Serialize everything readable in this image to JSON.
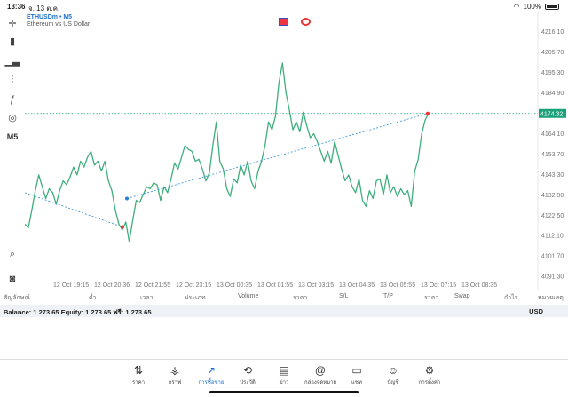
{
  "status": {
    "time": "13:36",
    "date": "จ. 13 ต.ค.",
    "battery": "100%"
  },
  "toolbar": {
    "timeframe": "M5"
  },
  "chart": {
    "symbol": "ETHUSDm • M5",
    "description": "Ethereum vs US Dollar",
    "current_price_label": "4174.32"
  },
  "chart_data": {
    "type": "line",
    "series": [
      {
        "values": [
          4118,
          4116,
          4125,
          4135,
          4143,
          4137,
          4131,
          4136,
          4134,
          4128,
          4135,
          4140,
          4138,
          4142,
          4147,
          4143,
          4150,
          4147,
          4152,
          4155,
          4148,
          4150,
          4145,
          4150,
          4140,
          4135,
          4125,
          4118,
          4115,
          4119,
          4109,
          4120,
          4130,
          4129,
          4133,
          4137,
          4136,
          4139,
          4138,
          4130,
          4137,
          4134,
          4141,
          4149,
          4146,
          4152,
          4158,
          4156,
          4155,
          4150,
          4151,
          4146,
          4140,
          4144,
          4158,
          4170,
          4150,
          4146,
          4136,
          4132,
          4141,
          4139,
          4148,
          4143,
          4150,
          4140,
          4136,
          4145,
          4150,
          4158,
          4170,
          4166,
          4173,
          4190,
          4200,
          4185,
          4176,
          4166,
          4170,
          4165,
          4175,
          4168,
          4162,
          4164,
          4160,
          4155,
          4150,
          4155,
          4149,
          4160,
          4153,
          4146,
          4140,
          4143,
          4137,
          4134,
          4141,
          4130,
          4127,
          4135,
          4131,
          4140,
          4141,
          4133,
          4143,
          4134,
          4137,
          4132,
          4136,
          4133,
          4135,
          4127,
          4145,
          4151,
          4164,
          4171,
          4174.32
        ]
      }
    ],
    "x_tick_labels": [
      "12 Oct 19:15",
      "12 Oct 20:36",
      "12 Oct 21:55",
      "12 Oct 23:15",
      "13 Oct 00:35",
      "13 Oct 01:55",
      "13 Oct 03:15",
      "13 Oct 04:35",
      "13 Oct 05:55",
      "13 Oct 07:15",
      "13 Oct 08:35"
    ],
    "y_tick_labels": [
      "4216.10",
      "4205.70",
      "4195.30",
      "4184.90",
      "4164.10",
      "4153.70",
      "4143.30",
      "4132.90",
      "4122.50",
      "4112.10",
      "4101.70",
      "4091.30"
    ],
    "ylim": [
      4084.6,
      4225.8
    ],
    "current_price": 4174.32,
    "colors": {
      "line": "#3fae7d",
      "current_price": "#1aa07a",
      "trendline": "#2a8fd8",
      "grid": "#f0f0f0"
    },
    "grid": false
  },
  "table_headers": [
    "สัญลักษณ์",
    "ต่ำ",
    "เวลา",
    "ประเภท",
    "Volume",
    "ราคา",
    "S/L",
    "T/P",
    "ราคา",
    "Swap",
    "กำไร",
    "หมายเหตุ"
  ],
  "balance": {
    "text": "Balance: 1 273.65 Equity: 1 273.65 ฟรี: 1 273.65",
    "currency": "USD"
  },
  "nav": [
    {
      "label": "ราคา",
      "icon": "⇅"
    },
    {
      "label": "กราฟ",
      "icon": "⚶"
    },
    {
      "label": "การซื้อขาย",
      "icon": "↗"
    },
    {
      "label": "ประวัติ",
      "icon": "⟲"
    },
    {
      "label": "ข่าว",
      "icon": "▤"
    },
    {
      "label": "กล่องจดหมาย",
      "icon": "@"
    },
    {
      "label": "แชท",
      "icon": "▭"
    },
    {
      "label": "บัญชี",
      "icon": "☺"
    },
    {
      "label": "การตั้งค่า",
      "icon": "⚙"
    }
  ]
}
